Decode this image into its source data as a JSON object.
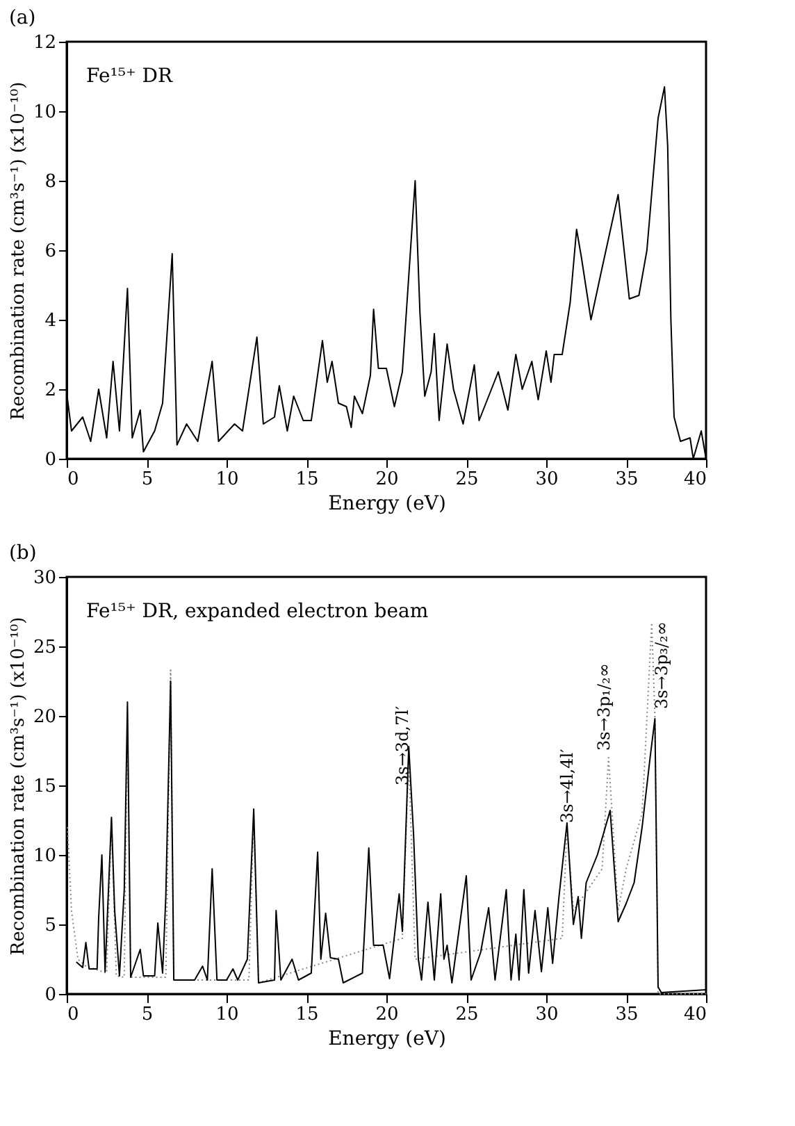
{
  "chart_data": [
    {
      "type": "line",
      "title": "(a)",
      "xlabel": "Energy (eV)",
      "ylabel": "Recombination rate (cm³s⁻¹)  (x10⁻¹⁰)",
      "xlim": [
        0,
        40
      ],
      "xticks": [
        0,
        5,
        10,
        15,
        20,
        25,
        30,
        35,
        40
      ],
      "ylim": [
        0,
        12
      ],
      "yticks": [
        0,
        2,
        4,
        6,
        8,
        10,
        12
      ],
      "grid": false,
      "line_style": "solid",
      "annotations": [
        "Fe¹⁵⁺ DR"
      ],
      "series": [
        {
          "color": "#000000",
          "x": [
            0,
            0.3,
            1,
            1.5,
            2,
            2.5,
            2.9,
            3.3,
            3.8,
            4.1,
            4.6,
            4.8,
            5.5,
            6,
            6.6,
            6.9,
            7.5,
            8.2,
            9.1,
            9.5,
            10.5,
            11,
            11.9,
            12.3,
            13,
            13.3,
            13.8,
            14.2,
            14.8,
            15.3,
            16,
            16.3,
            16.6,
            17,
            17.5,
            17.8,
            18,
            18.5,
            19,
            19.2,
            19.5,
            20,
            20.5,
            21,
            21.8,
            22.1,
            22.4,
            22.8,
            23,
            23.3,
            23.8,
            24.2,
            24.8,
            25.5,
            25.8,
            27,
            27.6,
            28.1,
            28.5,
            29.1,
            29.5,
            30,
            30.3,
            30.5,
            31,
            31.5,
            31.9,
            32.2,
            32.8,
            33.5,
            34.5,
            35.2,
            35.8,
            36.3,
            37,
            37.4,
            37.6,
            37.8,
            38,
            38.4,
            39,
            39.2,
            39.7,
            40
          ],
          "values": [
            1.9,
            0.8,
            1.2,
            0.5,
            2.0,
            0.6,
            2.8,
            0.8,
            4.9,
            0.6,
            1.4,
            0.2,
            0.8,
            1.6,
            5.9,
            0.4,
            1.0,
            0.5,
            2.8,
            0.5,
            1.0,
            0.8,
            3.5,
            1.0,
            1.2,
            2.1,
            0.8,
            1.8,
            1.1,
            1.1,
            3.4,
            2.2,
            2.8,
            1.6,
            1.5,
            0.9,
            1.8,
            1.3,
            2.4,
            4.3,
            2.6,
            2.6,
            1.5,
            2.5,
            8.0,
            4.2,
            1.8,
            2.5,
            3.6,
            1.1,
            3.3,
            2.0,
            1.0,
            2.7,
            1.1,
            2.5,
            1.4,
            3.0,
            2.0,
            2.8,
            1.7,
            3.1,
            2.2,
            3.0,
            3.0,
            4.5,
            6.6,
            5.8,
            4.0,
            5.5,
            7.6,
            4.6,
            4.7,
            6.0,
            9.8,
            10.7,
            9.0,
            4.0,
            1.2,
            0.5,
            0.6,
            0.0,
            0.8,
            0.0
          ]
        }
      ]
    },
    {
      "type": "line",
      "title": "(b)",
      "xlabel": "Energy (eV)",
      "ylabel": "Recombination rate (cm³s⁻¹)  (x10⁻¹⁰)",
      "xlim": [
        0,
        40
      ],
      "xticks": [
        0,
        5,
        10,
        15,
        20,
        25,
        30,
        35,
        40
      ],
      "ylim": [
        0,
        30
      ],
      "yticks": [
        0,
        5,
        10,
        15,
        20,
        25,
        30
      ],
      "grid": false,
      "annotations": [
        "Fe¹⁵⁺ DR, expanded electron beam",
        {
          "text": "3s→3d,7l′",
          "x": 21,
          "y": 15
        },
        {
          "text": "3s→4l,4l′",
          "x": 31.3,
          "y": 12.3
        },
        {
          "text": "3s→3p₁/₂∞",
          "x": 33.6,
          "y": 17.5
        },
        {
          "text": "3s→3p₃/₂∞",
          "x": 37.2,
          "y": 20.5
        }
      ],
      "series": [
        {
          "color": "#888888",
          "line_style": "dotted",
          "x": [
            0.05,
            0.3,
            0.7,
            1.2,
            2.5,
            2.8,
            3.1,
            3.6,
            3.8,
            4.0,
            6.2,
            6.5,
            6.7,
            11.4,
            11.7,
            12.0,
            21.0,
            21.4,
            21.8,
            31.0,
            31.3,
            31.7,
            33.5,
            33.9,
            34.5,
            35.0,
            36.0,
            36.6,
            36.8,
            37.0,
            37.5,
            40
          ],
          "values": [
            12,
            6,
            2.5,
            2,
            1.5,
            12.5,
            1.3,
            1.2,
            20,
            1.2,
            1.2,
            23.3,
            1.0,
            1.0,
            13,
            0.8,
            4,
            17,
            2.5,
            4,
            12,
            6,
            9,
            17,
            6,
            9,
            13,
            26.7,
            20,
            0,
            0,
            0
          ]
        },
        {
          "color": "#000000",
          "line_style": "solid",
          "x": [
            0.6,
            1,
            1.2,
            1.4,
            1.9,
            2,
            2.2,
            2.4,
            2.8,
            3,
            3.3,
            3.6,
            3.8,
            4.0,
            4.6,
            4.8,
            5.5,
            5.7,
            6,
            6.2,
            6.5,
            6.7,
            8,
            8.5,
            8.8,
            9.1,
            9.4,
            10,
            10.4,
            10.7,
            11.3,
            11.7,
            12,
            13,
            13.1,
            13.4,
            14.1,
            14.5,
            15.3,
            15.7,
            15.9,
            16.2,
            16.5,
            17,
            17.3,
            18.5,
            18.9,
            19.2,
            19.8,
            20.2,
            20.8,
            21,
            21.4,
            21.7,
            22,
            22.2,
            22.6,
            23,
            23.4,
            23.6,
            23.8,
            24.1,
            25,
            25.3,
            25.9,
            26.4,
            26.8,
            27.5,
            27.8,
            28.1,
            28.3,
            28.6,
            28.9,
            29.3,
            29.7,
            30.1,
            30.4,
            30.8,
            31.3,
            31.7,
            32,
            32.2,
            32.5,
            33.2,
            34,
            34.5,
            35,
            35.5,
            36,
            36.5,
            36.8,
            37,
            37.2,
            40
          ],
          "values": [
            2.3,
            1.9,
            3.7,
            1.8,
            1.8,
            5.5,
            10,
            1.6,
            12.7,
            6,
            1.3,
            7.5,
            21,
            1.2,
            3.2,
            1.3,
            1.3,
            5.1,
            1.5,
            7,
            22.5,
            1.0,
            1.0,
            2.0,
            1.0,
            9.0,
            1.0,
            1.0,
            1.8,
            1.0,
            2.5,
            13.3,
            0.8,
            1.0,
            6.0,
            1.0,
            2.5,
            1.0,
            1.5,
            10.2,
            2.5,
            5.8,
            2.6,
            2.5,
            0.8,
            1.5,
            10.5,
            3.5,
            3.5,
            1.1,
            7.2,
            4.5,
            17.8,
            11.5,
            2.5,
            1.0,
            6.6,
            1.0,
            7.2,
            2.5,
            3.5,
            0.8,
            8.5,
            1.0,
            3.0,
            6.2,
            1.0,
            7.5,
            1.0,
            4.3,
            1.0,
            7.5,
            1.5,
            6.0,
            1.6,
            6.2,
            2.2,
            7.0,
            12.3,
            5.0,
            7,
            4,
            8,
            10,
            13.2,
            5.2,
            6.5,
            8,
            12,
            17,
            19.8,
            0.5,
            0.1,
            0.3
          ]
        }
      ]
    }
  ]
}
